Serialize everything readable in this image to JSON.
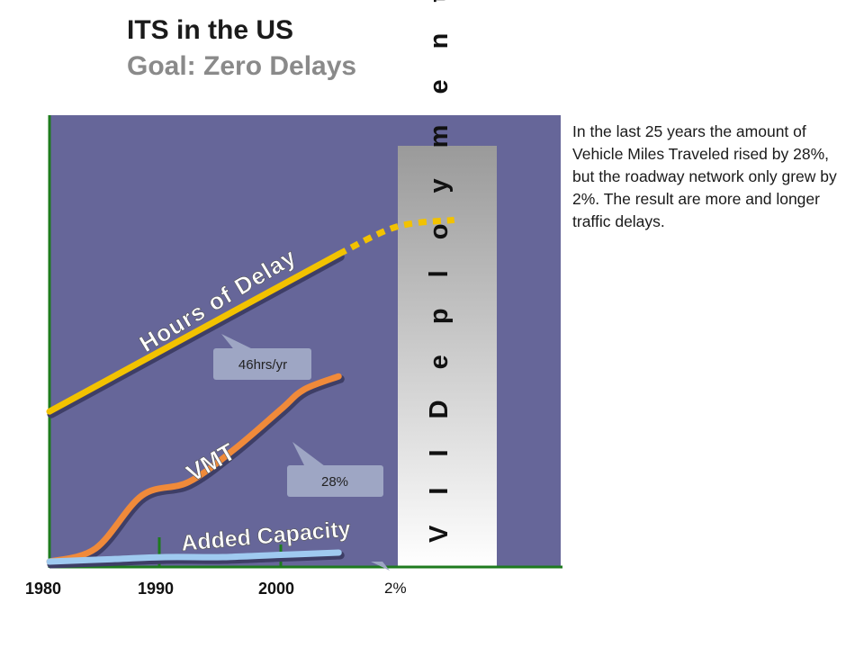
{
  "header": {
    "title": "ITS in the US",
    "subtitle": "Goal: Zero Delays"
  },
  "description": "In the last 25 years the amount of Vehicle Miles Traveled rised by 28%, but the roadway network only grew by 2%. The result are more and longer traffic delays.",
  "colors": {
    "plot_background": "#666699",
    "axis": "#1e7b1e",
    "hours_of_delay": "#f2c200",
    "vmt": "#f08a3a",
    "added_capacity": "#9fcaf0",
    "callout": "#9ea6c4",
    "deployment_band_top": "#9a9a9a",
    "deployment_band_bottom": "#ffffff"
  },
  "chart_data": {
    "type": "line",
    "title": "",
    "xlabel": "",
    "ylabel": "",
    "x_ticks": [
      "1980",
      "1990",
      "2000"
    ],
    "xlim": [
      1980,
      2015
    ],
    "series": [
      {
        "name": "Hours of Delay",
        "x": [
          1980,
          2005
        ],
        "values": [
          23,
          46
        ],
        "projection": {
          "x": [
            2005,
            2010,
            2015
          ],
          "values": [
            46,
            50,
            51
          ]
        }
      },
      {
        "name": "VMT",
        "x": [
          1980,
          1984,
          1988,
          1992,
          1996,
          2000,
          2002,
          2005
        ],
        "values": [
          0,
          2,
          10,
          12,
          17,
          23,
          26,
          28
        ]
      },
      {
        "name": "Added Capacity",
        "x": [
          1980,
          1985,
          1990,
          1995,
          2000,
          2005
        ],
        "values": [
          0,
          0.5,
          1,
          1,
          1.5,
          2
        ]
      }
    ],
    "callouts": [
      {
        "series": "Hours of Delay",
        "label": "46hrs/yr"
      },
      {
        "series": "VMT",
        "label": "28%"
      },
      {
        "series": "Added Capacity",
        "label": "2%"
      }
    ],
    "band_label": "VII Deployment",
    "band_label_spaced": "V I I   D e p l o y m e n t"
  }
}
